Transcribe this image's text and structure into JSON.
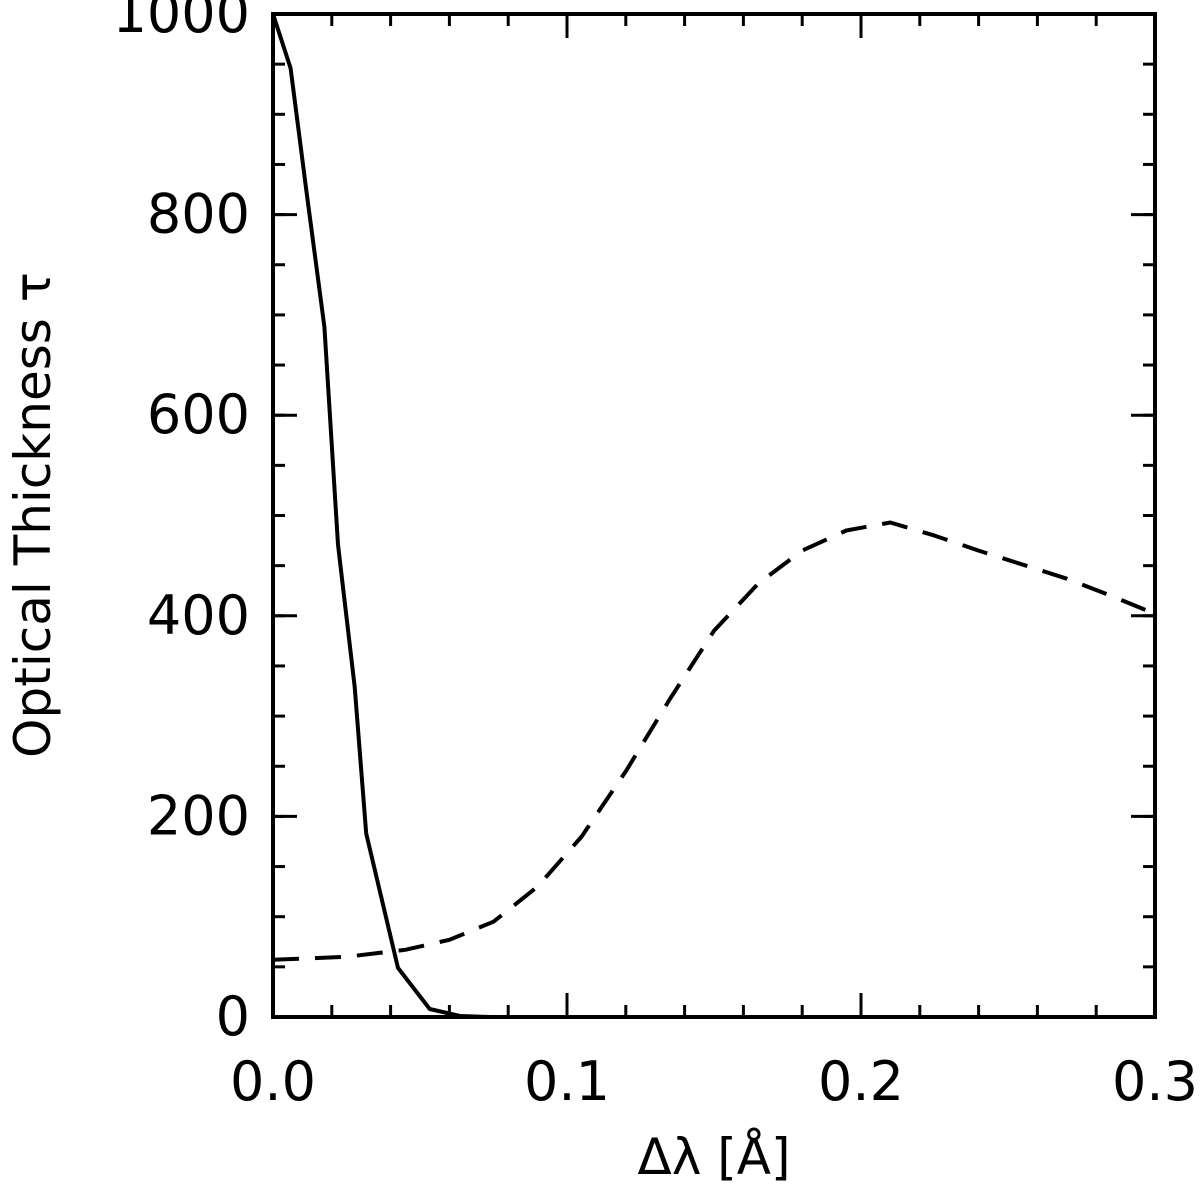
{
  "chart_data": {
    "type": "line",
    "title": "",
    "xlabel": "Δλ [Å]",
    "ylabel": "Optical Thickness τ",
    "xlim": [
      0.0,
      0.3
    ],
    "ylim": [
      0,
      1000
    ],
    "grid": false,
    "x_ticks": [
      "0.0",
      "0.1",
      "0.2",
      "0.3"
    ],
    "y_ticks": [
      "0",
      "200",
      "400",
      "600",
      "800",
      "1000"
    ],
    "series": [
      {
        "style": "solid",
        "color": "#000000",
        "x": [
          0.0,
          0.006,
          0.0113,
          0.0175,
          0.0221,
          0.0278,
          0.0317,
          0.0425,
          0.0533,
          0.0636,
          0.0738,
          0.085,
          0.1,
          0.3
        ],
        "y": [
          1000,
          946,
          825,
          688,
          471,
          329,
          183,
          49,
          8,
          1,
          0,
          0,
          0,
          0
        ]
      },
      {
        "style": "dashed",
        "color": "#000000",
        "x": [
          0.0,
          0.025,
          0.045,
          0.06,
          0.075,
          0.09,
          0.105,
          0.12,
          0.135,
          0.15,
          0.165,
          0.18,
          0.195,
          0.21,
          0.225,
          0.24,
          0.255,
          0.27,
          0.285,
          0.3
        ],
        "y": [
          57,
          60,
          67,
          77,
          95,
          130,
          180,
          245,
          317,
          385,
          432,
          465,
          485,
          493,
          480,
          465,
          451,
          437,
          420,
          402
        ]
      }
    ]
  }
}
